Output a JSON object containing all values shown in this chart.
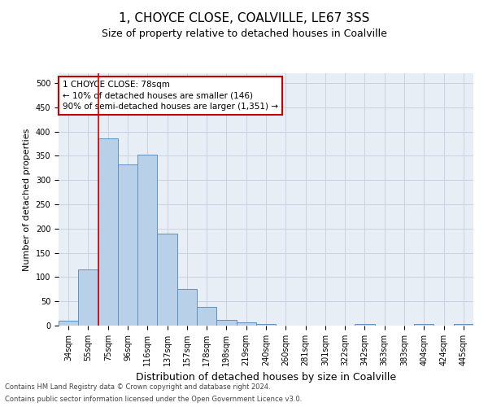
{
  "title": "1, CHOYCE CLOSE, COALVILLE, LE67 3SS",
  "subtitle": "Size of property relative to detached houses in Coalville",
  "xlabel": "Distribution of detached houses by size in Coalville",
  "ylabel": "Number of detached properties",
  "categories": [
    "34sqm",
    "55sqm",
    "75sqm",
    "96sqm",
    "116sqm",
    "137sqm",
    "157sqm",
    "178sqm",
    "198sqm",
    "219sqm",
    "240sqm",
    "260sqm",
    "281sqm",
    "301sqm",
    "322sqm",
    "342sqm",
    "363sqm",
    "383sqm",
    "404sqm",
    "424sqm",
    "445sqm"
  ],
  "values": [
    10,
    115,
    385,
    332,
    352,
    190,
    76,
    38,
    11,
    6,
    3,
    0,
    0,
    0,
    0,
    4,
    0,
    0,
    4,
    0,
    4
  ],
  "bar_color": "#b8d0e8",
  "bar_edge_color": "#6090c0",
  "grid_color": "#c8d4e4",
  "vline_color": "#cc0000",
  "annotation_text": "1 CHOYCE CLOSE: 78sqm\n← 10% of detached houses are smaller (146)\n90% of semi-detached houses are larger (1,351) →",
  "annotation_box_color": "#ffffff",
  "annotation_box_edge_color": "#cc0000",
  "footer_line1": "Contains HM Land Registry data © Crown copyright and database right 2024.",
  "footer_line2": "Contains public sector information licensed under the Open Government Licence v3.0.",
  "ylim": [
    0,
    520
  ],
  "yticks": [
    0,
    50,
    100,
    150,
    200,
    250,
    300,
    350,
    400,
    450,
    500
  ],
  "background_color": "#ffffff",
  "axes_bg_color": "#e8eef6",
  "title_fontsize": 11,
  "subtitle_fontsize": 9,
  "ylabel_fontsize": 8,
  "xlabel_fontsize": 9,
  "tick_fontsize": 7,
  "annotation_fontsize": 7.5,
  "footer_fontsize": 6
}
